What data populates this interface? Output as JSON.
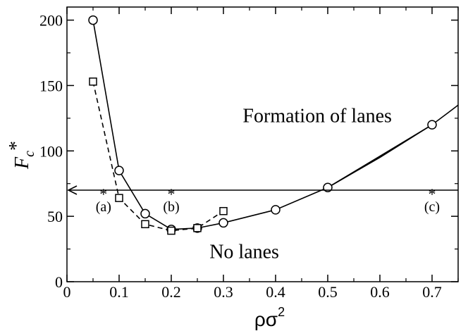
{
  "chart_data": {
    "type": "line",
    "title": "",
    "xlabel": "ρσ",
    "xlabel_sup": "2",
    "ylabel": "F",
    "ylabel_sub": "c",
    "ylabel_sup": "*",
    "xlim": [
      0,
      0.75
    ],
    "ylim": [
      0,
      210
    ],
    "x_ticks": [
      0,
      0.1,
      0.2,
      0.3,
      0.4,
      0.5,
      0.6,
      0.7
    ],
    "x_tick_labels": [
      "0",
      "0.1",
      "0.2",
      "0.3",
      "0.4",
      "0.5",
      "0.6",
      "0.7"
    ],
    "y_ticks": [
      0,
      50,
      100,
      150,
      200
    ],
    "y_tick_labels": [
      "0",
      "50",
      "100",
      "150",
      "200"
    ],
    "grid": false,
    "series": [
      {
        "marker": "circle",
        "line": "solid",
        "x": [
          0.05,
          0.1,
          0.15,
          0.2,
          0.25,
          0.3,
          0.4,
          0.5,
          0.7
        ],
        "y": [
          200,
          85,
          52,
          40,
          41,
          45,
          55,
          72,
          120
        ]
      },
      {
        "marker": "square",
        "line": "dashed",
        "x": [
          0.05,
          0.1,
          0.15,
          0.2,
          0.25,
          0.3
        ],
        "y": [
          153,
          64,
          44,
          39,
          41,
          54
        ]
      }
    ],
    "trend_curve": {
      "x": [
        0.5,
        0.6,
        0.7,
        0.75
      ],
      "y": [
        72,
        95,
        120,
        135
      ]
    },
    "horizontal_line": {
      "y": 70,
      "arrow": "left"
    },
    "star_points": [
      {
        "x": 0.07,
        "y": 70,
        "label": "(a)"
      },
      {
        "x": 0.2,
        "y": 70,
        "label": "(b)"
      },
      {
        "x": 0.7,
        "y": 70,
        "label": "(c)"
      }
    ],
    "annotations": [
      {
        "text": "Formation of lanes",
        "x": 0.48,
        "y": 122
      },
      {
        "text": "No lanes",
        "x": 0.34,
        "y": 18
      }
    ]
  }
}
